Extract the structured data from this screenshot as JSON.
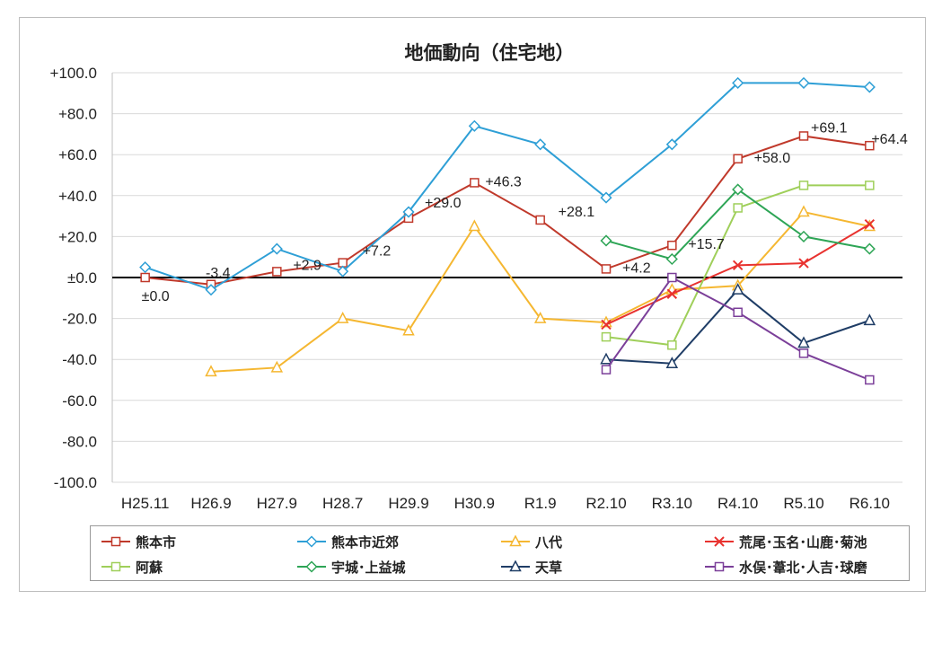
{
  "chart_data": {
    "type": "line",
    "title": "地価動向（住宅地）",
    "categories": [
      "H25.11",
      "H26.9",
      "H27.9",
      "H28.7",
      "H29.9",
      "H30.9",
      "R1.9",
      "R2.10",
      "R3.10",
      "R4.10",
      "R5.10",
      "R6.10"
    ],
    "y_ticks": [
      "+100.0",
      "+80.0",
      "+60.0",
      "+40.0",
      "+20.0",
      "±0.0",
      "-20.0",
      "-40.0",
      "-60.0",
      "-80.0",
      "-100.0"
    ],
    "ylim": [
      -100,
      100
    ],
    "grid": true,
    "legend_position": "bottom",
    "series": [
      {
        "name": "熊本市",
        "color": "#c0392b",
        "marker": "square",
        "values": [
          0,
          -3.4,
          2.9,
          7.2,
          29.0,
          46.3,
          28.1,
          4.2,
          15.7,
          58.0,
          69.1,
          64.4
        ],
        "labels": [
          "±0.0",
          "-3.4",
          "+2.9",
          "+7.2",
          "+29.0",
          "+46.3",
          "+28.1",
          "+4.2",
          "+15.7",
          "+58.0",
          "+69.1",
          "+64.4"
        ]
      },
      {
        "name": "熊本市近郊",
        "color": "#2e9fd6",
        "marker": "diamond",
        "values": [
          5,
          -6,
          14,
          3,
          32,
          74,
          65,
          39,
          65,
          95,
          95,
          93
        ]
      },
      {
        "name": "八代",
        "color": "#f5b731",
        "marker": "triangle",
        "values": [
          null,
          -46,
          -44,
          -20,
          -26,
          25,
          -20,
          -22,
          -6,
          -4,
          32,
          25
        ]
      },
      {
        "name": "荒尾･玉名･山鹿･菊池",
        "color": "#e8322f",
        "marker": "x",
        "values": [
          null,
          null,
          null,
          null,
          null,
          null,
          null,
          -23,
          -8,
          6,
          7,
          26
        ]
      },
      {
        "name": "阿蘇",
        "color": "#9fcf5a",
        "marker": "square",
        "values": [
          null,
          null,
          null,
          null,
          null,
          null,
          null,
          -29,
          -33,
          34,
          45,
          45
        ]
      },
      {
        "name": "宇城･上益城",
        "color": "#2ea556",
        "marker": "diamond",
        "values": [
          null,
          null,
          null,
          null,
          null,
          null,
          null,
          18,
          9,
          43,
          20,
          14
        ]
      },
      {
        "name": "天草",
        "color": "#1f3d66",
        "marker": "triangle",
        "values": [
          null,
          null,
          null,
          null,
          null,
          null,
          null,
          -40,
          -42,
          -6,
          -32,
          -21
        ]
      },
      {
        "name": "水俣･葦北･人吉･球磨",
        "color": "#7b3f99",
        "marker": "square",
        "values": [
          null,
          null,
          null,
          null,
          null,
          null,
          null,
          -45,
          0,
          -17,
          -37,
          -50
        ]
      }
    ]
  }
}
